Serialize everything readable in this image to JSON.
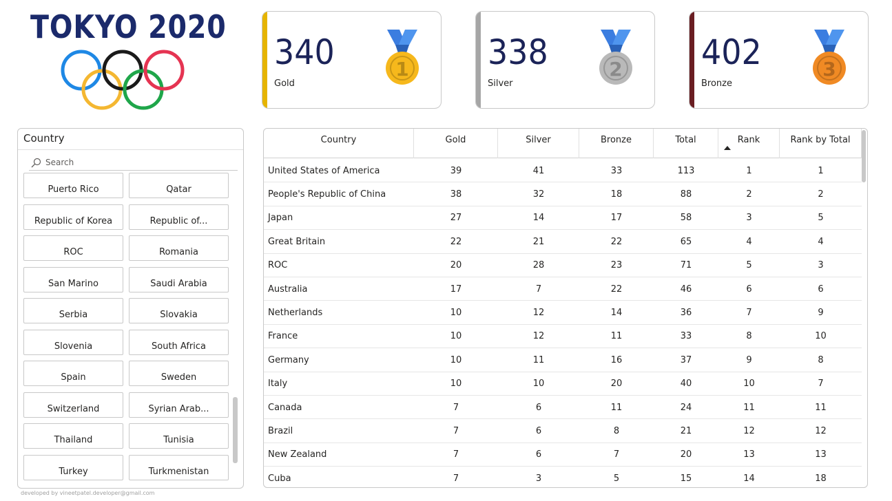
{
  "logo": {
    "title": "TOKYO 2020",
    "ring_colors": [
      "#1e88e5",
      "#f4b731",
      "#1a1a1a",
      "#1fa64a",
      "#e53452"
    ]
  },
  "kpis": [
    {
      "value": "340",
      "label": "Gold",
      "accent": "#e6b400",
      "medal_number": "1",
      "medal_color": "#f6b81c",
      "medal_icon": "gold-medal-icon"
    },
    {
      "value": "338",
      "label": "Silver",
      "accent": "#a6a6a6",
      "medal_number": "2",
      "medal_color": "#b9b9b9",
      "medal_icon": "silver-medal-icon"
    },
    {
      "value": "402",
      "label": "Bronze",
      "accent": "#6a1e22",
      "medal_number": "3",
      "medal_color": "#f08a24",
      "medal_icon": "bronze-medal-icon"
    }
  ],
  "slicer": {
    "title": "Country",
    "search_placeholder": "Search",
    "items": [
      "Puerto Rico",
      "Qatar",
      "Republic of Korea",
      "Republic of...",
      "ROC",
      "Romania",
      "San Marino",
      "Saudi Arabia",
      "Serbia",
      "Slovakia",
      "Slovenia",
      "South Africa",
      "Spain",
      "Sweden",
      "Switzerland",
      "Syrian Arab...",
      "Thailand",
      "Tunisia",
      "Turkey",
      "Turkmenistan"
    ]
  },
  "footer": "developed by vineetpatel.developer@gmail.com",
  "table": {
    "columns": [
      "Country",
      "Gold",
      "Silver",
      "Bronze",
      "Total",
      "Rank",
      "Rank by Total"
    ],
    "sorted_column": "Rank",
    "rows": [
      [
        "United States of America",
        "39",
        "41",
        "33",
        "113",
        "1",
        "1"
      ],
      [
        "People's Republic of China",
        "38",
        "32",
        "18",
        "88",
        "2",
        "2"
      ],
      [
        "Japan",
        "27",
        "14",
        "17",
        "58",
        "3",
        "5"
      ],
      [
        "Great Britain",
        "22",
        "21",
        "22",
        "65",
        "4",
        "4"
      ],
      [
        "ROC",
        "20",
        "28",
        "23",
        "71",
        "5",
        "3"
      ],
      [
        "Australia",
        "17",
        "7",
        "22",
        "46",
        "6",
        "6"
      ],
      [
        "Netherlands",
        "10",
        "12",
        "14",
        "36",
        "7",
        "9"
      ],
      [
        "France",
        "10",
        "12",
        "11",
        "33",
        "8",
        "10"
      ],
      [
        "Germany",
        "10",
        "11",
        "16",
        "37",
        "9",
        "8"
      ],
      [
        "Italy",
        "10",
        "10",
        "20",
        "40",
        "10",
        "7"
      ],
      [
        "Canada",
        "7",
        "6",
        "11",
        "24",
        "11",
        "11"
      ],
      [
        "Brazil",
        "7",
        "6",
        "8",
        "21",
        "12",
        "12"
      ],
      [
        "New Zealand",
        "7",
        "6",
        "7",
        "20",
        "13",
        "13"
      ],
      [
        "Cuba",
        "7",
        "3",
        "5",
        "15",
        "14",
        "18"
      ]
    ]
  }
}
